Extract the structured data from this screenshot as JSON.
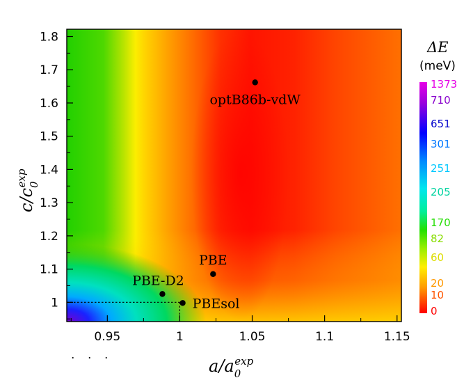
{
  "chart_data": {
    "type": "heatmap",
    "title": "",
    "xlabel": "a/a0^exp",
    "ylabel": "c/c0^exp",
    "x_label_parts": {
      "var": "a",
      "slash": "/",
      "base": "a",
      "sub": "0",
      "sup": "exp"
    },
    "y_label_parts": {
      "var": "c",
      "slash": "/",
      "base": "c",
      "sub": "0",
      "sup": "exp"
    },
    "xlim": [
      0.922,
      1.153
    ],
    "ylim": [
      0.942,
      1.822
    ],
    "x_ticks": [
      {
        "value": 0.95,
        "label": "0.95"
      },
      {
        "value": 1.0,
        "label": "1"
      },
      {
        "value": 1.05,
        "label": "1.05"
      },
      {
        "value": 1.1,
        "label": "1.1"
      },
      {
        "value": 1.15,
        "label": "1.15"
      }
    ],
    "y_ticks": [
      {
        "value": 1.0,
        "label": "1"
      },
      {
        "value": 1.1,
        "label": "1.1"
      },
      {
        "value": 1.2,
        "label": "1.2"
      },
      {
        "value": 1.3,
        "label": "1.3"
      },
      {
        "value": 1.4,
        "label": "1.4"
      },
      {
        "value": 1.5,
        "label": "1.5"
      },
      {
        "value": 1.6,
        "label": "1.6"
      },
      {
        "value": 1.7,
        "label": "1.7"
      },
      {
        "value": 1.8,
        "label": "1.8"
      }
    ],
    "points": [
      {
        "name": "optB86b-vdW",
        "x": 1.052,
        "y": 1.662
      },
      {
        "name": "PBE",
        "x": 1.023,
        "y": 1.085
      },
      {
        "name": "PBE-D2",
        "x": 0.988,
        "y": 1.025
      },
      {
        "name": "PBEsol",
        "x": 1.002,
        "y": 0.998
      }
    ],
    "reference_lines": {
      "x": 1.0,
      "y": 1.0,
      "style": "dotted"
    },
    "colorbar": {
      "title": "ΔE",
      "unit": "(meV)",
      "ticks": [
        {
          "label": "1373",
          "color": "#e600e6"
        },
        {
          "label": "710",
          "color": "#8800cc"
        },
        {
          "label": "651",
          "color": "#0000cc"
        },
        {
          "label": "301",
          "color": "#0077ff"
        },
        {
          "label": "251",
          "color": "#00c8ff"
        },
        {
          "label": "205",
          "color": "#00d4a0"
        },
        {
          "label": "170",
          "color": "#22dd00"
        },
        {
          "label": "82",
          "color": "#88dd00"
        },
        {
          "label": "60",
          "color": "#dddd00"
        },
        {
          "label": "20",
          "color": "#ff9900"
        },
        {
          "label": "10",
          "color": "#ff5500"
        },
        {
          "label": "0",
          "color": "#ff0000"
        }
      ]
    },
    "footer_marks": [
      "·",
      "·",
      "·"
    ]
  }
}
